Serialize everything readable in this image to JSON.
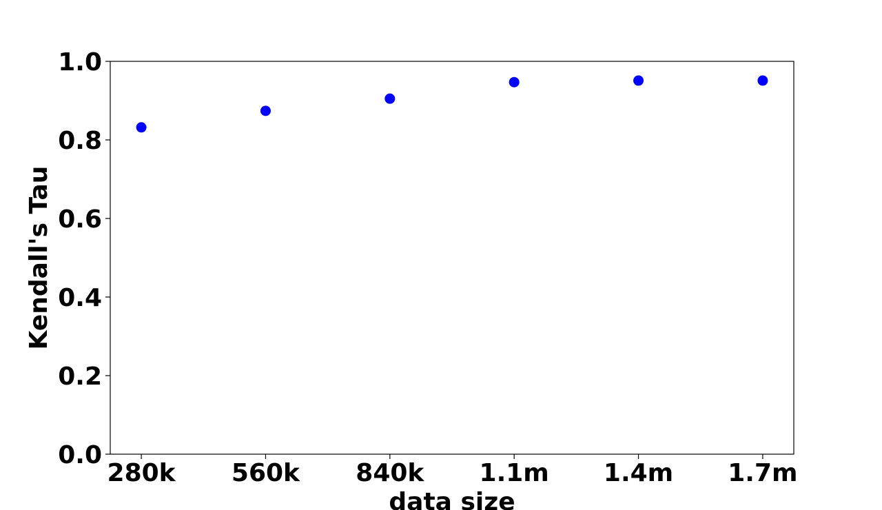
{
  "chart_data": {
    "type": "line",
    "x_label": "data size",
    "y_label": "Kendall's Tau",
    "categories": [
      "280k",
      "560k",
      "840k",
      "1.1m",
      "1.4m",
      "1.7m"
    ],
    "series": [
      {
        "name": "Kendall's Tau",
        "color": "#0000ff",
        "values": [
          0.832,
          0.874,
          0.905,
          0.947,
          0.951,
          0.951
        ]
      }
    ],
    "ylim": [
      0,
      1
    ],
    "yticks": [
      {
        "value": 0,
        "label": "0.0"
      },
      {
        "value": 0.2,
        "label": "0.2"
      },
      {
        "value": 0.4,
        "label": "0.4"
      },
      {
        "value": 0.6,
        "label": "0.6"
      },
      {
        "value": 0.8,
        "label": "0.8"
      },
      {
        "value": 1,
        "label": "1.0"
      }
    ],
    "grid": false
  }
}
